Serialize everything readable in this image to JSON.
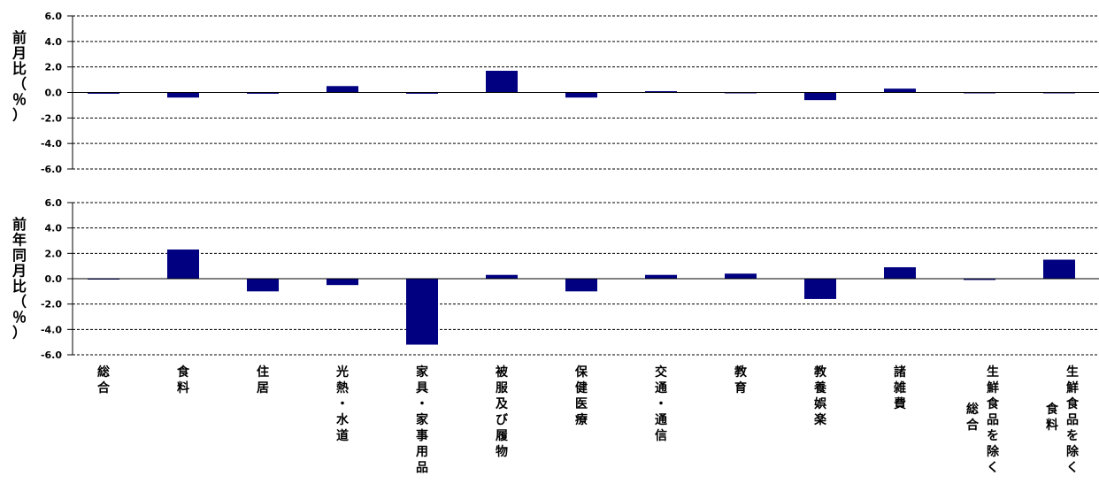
{
  "chart_data": [
    {
      "type": "bar",
      "ylabel": "前月比（％）",
      "ylim": [
        -6,
        6
      ],
      "yticks": [
        "6.0",
        "4.0",
        "2.0",
        "0.0",
        "-2.0",
        "-4.0",
        "-6.0"
      ],
      "grid": "dashed horizontal",
      "values": [
        -0.1,
        -0.4,
        -0.1,
        0.5,
        -0.1,
        1.7,
        -0.4,
        0.1,
        0.0,
        -0.6,
        0.3,
        0.0,
        0.0
      ]
    },
    {
      "type": "bar",
      "ylabel": "前年同月比（％）",
      "ylim": [
        -6,
        6
      ],
      "yticks": [
        "6.0",
        "4.0",
        "2.0",
        "0.0",
        "-2.0",
        "-4.0",
        "-6.0"
      ],
      "grid": "dashed horizontal",
      "values": [
        0.0,
        2.3,
        -1.0,
        -0.5,
        -5.2,
        0.3,
        -1.0,
        0.3,
        0.4,
        -1.6,
        0.9,
        -0.1,
        1.5
      ]
    }
  ],
  "categories": [
    {
      "label": "総合",
      "main": "総合",
      "sub": ""
    },
    {
      "label": "食料",
      "main": "食料",
      "sub": ""
    },
    {
      "label": "住居",
      "main": "住居",
      "sub": ""
    },
    {
      "label": "光熱・水道",
      "main": "光熱・水道",
      "sub": ""
    },
    {
      "label": "家具・家事用品",
      "main": "家具・家事用品",
      "sub": ""
    },
    {
      "label": "被服及び履物",
      "main": "被服及び履物",
      "sub": ""
    },
    {
      "label": "保健医療",
      "main": "保健医療",
      "sub": ""
    },
    {
      "label": "交通・通信",
      "main": "交通・通信",
      "sub": ""
    },
    {
      "label": "教育",
      "main": "教育",
      "sub": ""
    },
    {
      "label": "教養娯楽",
      "main": "教養娯楽",
      "sub": ""
    },
    {
      "label": "諸雑費",
      "main": "諸雑費",
      "sub": ""
    },
    {
      "label": "生鮮食品を除く総合",
      "main": "生鮮食品を除く",
      "sub": "総合"
    },
    {
      "label": "生鮮食品を除く食料",
      "main": "生鮮食品を除く",
      "sub": "食料"
    }
  ],
  "colors": {
    "bar": "#000080",
    "grid": "#000000",
    "axis": "#000000"
  }
}
